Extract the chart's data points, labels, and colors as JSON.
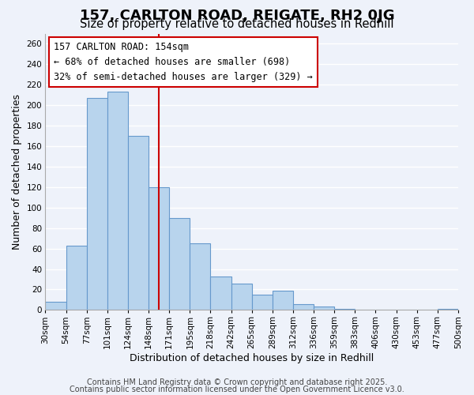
{
  "title": "157, CARLTON ROAD, REIGATE, RH2 0JG",
  "subtitle": "Size of property relative to detached houses in Redhill",
  "xlabel": "Distribution of detached houses by size in Redhill",
  "ylabel": "Number of detached properties",
  "bar_color": "#b8d4ed",
  "bar_edge_color": "#6699cc",
  "background_color": "#eef2fa",
  "grid_color": "white",
  "bin_edges": [
    "30sqm",
    "54sqm",
    "77sqm",
    "101sqm",
    "124sqm",
    "148sqm",
    "171sqm",
    "195sqm",
    "218sqm",
    "242sqm",
    "265sqm",
    "289sqm",
    "312sqm",
    "336sqm",
    "359sqm",
    "383sqm",
    "406sqm",
    "430sqm",
    "453sqm",
    "477sqm",
    "500sqm"
  ],
  "bar_values": [
    8,
    63,
    207,
    213,
    170,
    120,
    90,
    65,
    33,
    26,
    15,
    19,
    6,
    3,
    1,
    0,
    0,
    0,
    0,
    1
  ],
  "ylim": [
    0,
    270
  ],
  "yticks": [
    0,
    20,
    40,
    60,
    80,
    100,
    120,
    140,
    160,
    180,
    200,
    220,
    240,
    260
  ],
  "vline_position": 5.5,
  "vline_color": "#cc0000",
  "annotation_title": "157 CARLTON ROAD: 154sqm",
  "annotation_line1": "← 68% of detached houses are smaller (698)",
  "annotation_line2": "32% of semi-detached houses are larger (329) →",
  "annotation_box_color": "white",
  "annotation_box_edge": "#cc0000",
  "footer_line1": "Contains HM Land Registry data © Crown copyright and database right 2025.",
  "footer_line2": "Contains public sector information licensed under the Open Government Licence v3.0.",
  "title_fontsize": 13,
  "subtitle_fontsize": 10.5,
  "axis_label_fontsize": 9,
  "tick_fontsize": 7.5,
  "annotation_fontsize": 8.5,
  "footer_fontsize": 7
}
